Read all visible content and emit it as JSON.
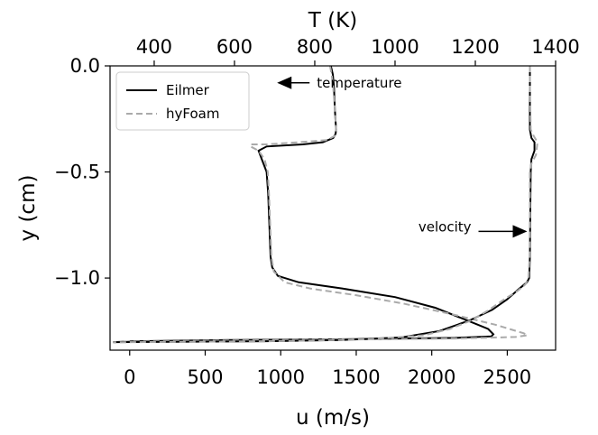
{
  "chart_data": {
    "type": "line",
    "title": "",
    "xlabel": "u (m/s)",
    "x2label": "T (K)",
    "ylabel": "y (cm)",
    "xlim": [
      -130,
      2820
    ],
    "x2lim": [
      290,
      1400
    ],
    "ylim": [
      -1.34,
      0.0
    ],
    "xticks": [
      0,
      500,
      1000,
      1500,
      2000,
      2500
    ],
    "x2ticks": [
      400,
      600,
      800,
      1000,
      1200,
      1400
    ],
    "yticks": [
      0.0,
      -0.5,
      -1.0
    ],
    "xtick_labels": [
      "0",
      "500",
      "1000",
      "1500",
      "2000",
      "2500"
    ],
    "x2tick_labels": [
      "400",
      "600",
      "800",
      "1000",
      "1200",
      "1400"
    ],
    "ytick_labels": [
      "0.0",
      "−0.5",
      "−1.0"
    ],
    "grid": false,
    "legend_position": "top-left",
    "legend": [
      {
        "name": "Eilmer",
        "color": "#000000",
        "dash": "solid"
      },
      {
        "name": "hyFoam",
        "color": "#aaaaaa",
        "dash": "dashed"
      }
    ],
    "annotations": [
      {
        "text": "temperature",
        "arrow": "left",
        "x": 1000,
        "x_axis": "u",
        "y": -0.08
      },
      {
        "text": "velocity",
        "arrow": "right",
        "x": 2620,
        "x_axis": "u",
        "y": -0.78
      }
    ],
    "series": [
      {
        "name": "Eilmer",
        "quantity": "temperature",
        "axis": "T",
        "color": "#000000",
        "dash": "solid",
        "points": [
          [
            840,
            0.0
          ],
          [
            845,
            -0.04
          ],
          [
            848,
            -0.1
          ],
          [
            850,
            -0.2
          ],
          [
            853,
            -0.3
          ],
          [
            852,
            -0.32
          ],
          [
            846,
            -0.34
          ],
          [
            820,
            -0.36
          ],
          [
            770,
            -0.37
          ],
          [
            680,
            -0.38
          ],
          [
            660,
            -0.4
          ],
          [
            668,
            -0.44
          ],
          [
            680,
            -0.5
          ],
          [
            684,
            -0.6
          ],
          [
            686,
            -0.7
          ],
          [
            688,
            -0.8
          ],
          [
            690,
            -0.9
          ],
          [
            694,
            -0.95
          ],
          [
            708,
            -0.99
          ],
          [
            760,
            -1.02
          ],
          [
            870,
            -1.05
          ],
          [
            1000,
            -1.09
          ],
          [
            1100,
            -1.14
          ],
          [
            1180,
            -1.2
          ],
          [
            1232,
            -1.24
          ],
          [
            1245,
            -1.265
          ],
          [
            1240,
            -1.275
          ],
          [
            1150,
            -1.282
          ],
          [
            900,
            -1.288
          ],
          [
            600,
            -1.292
          ],
          [
            350,
            -1.298
          ],
          [
            300,
            -1.302
          ]
        ]
      },
      {
        "name": "hyFoam",
        "quantity": "temperature",
        "axis": "T",
        "color": "#aaaaaa",
        "dash": "dashed",
        "points": [
          [
            838,
            0.0
          ],
          [
            842,
            -0.04
          ],
          [
            846,
            -0.1
          ],
          [
            850,
            -0.2
          ],
          [
            853,
            -0.3
          ],
          [
            850,
            -0.33
          ],
          [
            830,
            -0.35
          ],
          [
            760,
            -0.36
          ],
          [
            680,
            -0.37
          ],
          [
            640,
            -0.37
          ],
          [
            640,
            -0.38
          ],
          [
            660,
            -0.4
          ],
          [
            675,
            -0.44
          ],
          [
            683,
            -0.5
          ],
          [
            686,
            -0.6
          ],
          [
            688,
            -0.7
          ],
          [
            690,
            -0.8
          ],
          [
            692,
            -0.9
          ],
          [
            698,
            -0.97
          ],
          [
            725,
            -1.02
          ],
          [
            790,
            -1.05
          ],
          [
            900,
            -1.08
          ],
          [
            1020,
            -1.12
          ],
          [
            1140,
            -1.17
          ],
          [
            1250,
            -1.22
          ],
          [
            1320,
            -1.26
          ],
          [
            1330,
            -1.27
          ],
          [
            1300,
            -1.278
          ],
          [
            1150,
            -1.285
          ],
          [
            850,
            -1.29
          ],
          [
            500,
            -1.296
          ],
          [
            320,
            -1.3
          ],
          [
            300,
            -1.302
          ]
        ]
      },
      {
        "name": "Eilmer",
        "quantity": "velocity",
        "axis": "u",
        "color": "#000000",
        "dash": "solid",
        "points": [
          [
            2650,
            0.0
          ],
          [
            2650,
            -0.1
          ],
          [
            2650,
            -0.3
          ],
          [
            2660,
            -0.34
          ],
          [
            2680,
            -0.36
          ],
          [
            2680,
            -0.4
          ],
          [
            2660,
            -0.44
          ],
          [
            2655,
            -0.5
          ],
          [
            2652,
            -0.7
          ],
          [
            2650,
            -0.9
          ],
          [
            2645,
            -1.0
          ],
          [
            2630,
            -1.02
          ],
          [
            2580,
            -1.05
          ],
          [
            2500,
            -1.1
          ],
          [
            2400,
            -1.15
          ],
          [
            2250,
            -1.2
          ],
          [
            2050,
            -1.25
          ],
          [
            1800,
            -1.28
          ],
          [
            1400,
            -1.292
          ],
          [
            900,
            -1.298
          ],
          [
            400,
            -1.3
          ],
          [
            -110,
            -1.302
          ]
        ]
      },
      {
        "name": "hyFoam",
        "quantity": "velocity",
        "axis": "u",
        "color": "#aaaaaa",
        "dash": "dashed",
        "points": [
          [
            2650,
            0.0
          ],
          [
            2650,
            -0.1
          ],
          [
            2655,
            -0.3
          ],
          [
            2675,
            -0.33
          ],
          [
            2700,
            -0.36
          ],
          [
            2690,
            -0.42
          ],
          [
            2660,
            -0.46
          ],
          [
            2650,
            -0.5
          ],
          [
            2650,
            -0.7
          ],
          [
            2648,
            -0.9
          ],
          [
            2640,
            -1.0
          ],
          [
            2620,
            -1.03
          ],
          [
            2570,
            -1.06
          ],
          [
            2480,
            -1.1
          ],
          [
            2380,
            -1.15
          ],
          [
            2260,
            -1.2
          ],
          [
            2120,
            -1.24
          ],
          [
            1950,
            -1.27
          ],
          [
            1600,
            -1.288
          ],
          [
            1100,
            -1.296
          ],
          [
            500,
            -1.3
          ],
          [
            -110,
            -1.303
          ]
        ]
      }
    ]
  }
}
